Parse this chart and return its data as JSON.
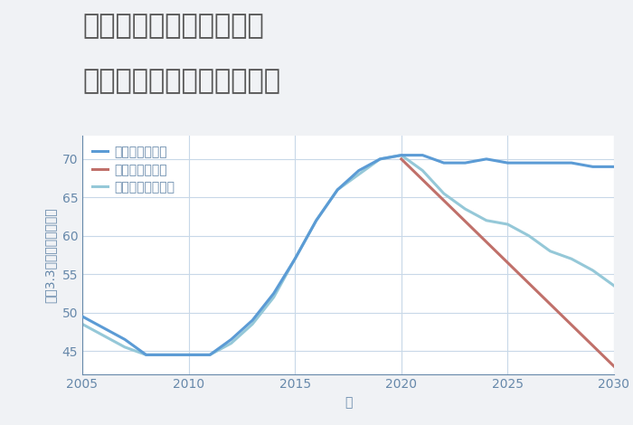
{
  "title_line1": "福岡県太宰府市梅香苑の",
  "title_line2": "中古マンションの価格推移",
  "xlabel": "年",
  "ylabel": "坪（3.3㎡）単価（万円）",
  "background_color": "#f0f2f5",
  "plot_bg_color": "#ffffff",
  "grid_color": "#c8d8e8",
  "title_color": "#555555",
  "axis_color": "#6688aa",
  "tick_color": "#6688aa",
  "good_scenario": {
    "label": "グッドシナリオ",
    "color": "#5b9bd5",
    "x": [
      2005,
      2007,
      2008,
      2009,
      2010,
      2011,
      2012,
      2013,
      2014,
      2015,
      2016,
      2017,
      2018,
      2019,
      2020,
      2021,
      2022,
      2023,
      2024,
      2025,
      2026,
      2027,
      2028,
      2029,
      2030
    ],
    "y": [
      49.5,
      46.5,
      44.5,
      44.5,
      44.5,
      44.5,
      46.5,
      49.0,
      52.5,
      57.0,
      62.0,
      66.0,
      68.5,
      70.0,
      70.5,
      70.5,
      69.5,
      69.5,
      70.0,
      69.5,
      69.5,
      69.5,
      69.5,
      69.0,
      69.0
    ]
  },
  "bad_scenario": {
    "label": "バッドシナリオ",
    "color": "#c0706a",
    "x": [
      2020,
      2030
    ],
    "y": [
      70.0,
      43.0
    ]
  },
  "normal_scenario": {
    "label": "ノーマルシナリオ",
    "color": "#95c8d8",
    "x": [
      2005,
      2007,
      2008,
      2009,
      2010,
      2011,
      2012,
      2013,
      2014,
      2015,
      2016,
      2017,
      2018,
      2019,
      2020,
      2021,
      2022,
      2023,
      2024,
      2025,
      2026,
      2027,
      2028,
      2029,
      2030
    ],
    "y": [
      48.5,
      45.5,
      44.5,
      44.5,
      44.5,
      44.5,
      46.0,
      48.5,
      52.0,
      57.0,
      62.0,
      66.0,
      68.0,
      70.0,
      70.5,
      68.5,
      65.5,
      63.5,
      62.0,
      61.5,
      60.0,
      58.0,
      57.0,
      55.5,
      53.5
    ]
  },
  "xlim": [
    2005,
    2030
  ],
  "ylim": [
    42,
    73
  ],
  "yticks": [
    45,
    50,
    55,
    60,
    65,
    70
  ],
  "xticks": [
    2005,
    2010,
    2015,
    2020,
    2025,
    2030
  ],
  "linewidth": 2.2,
  "legend_fontsize": 10,
  "title_fontsize": 22,
  "axis_label_fontsize": 10,
  "tick_fontsize": 10
}
